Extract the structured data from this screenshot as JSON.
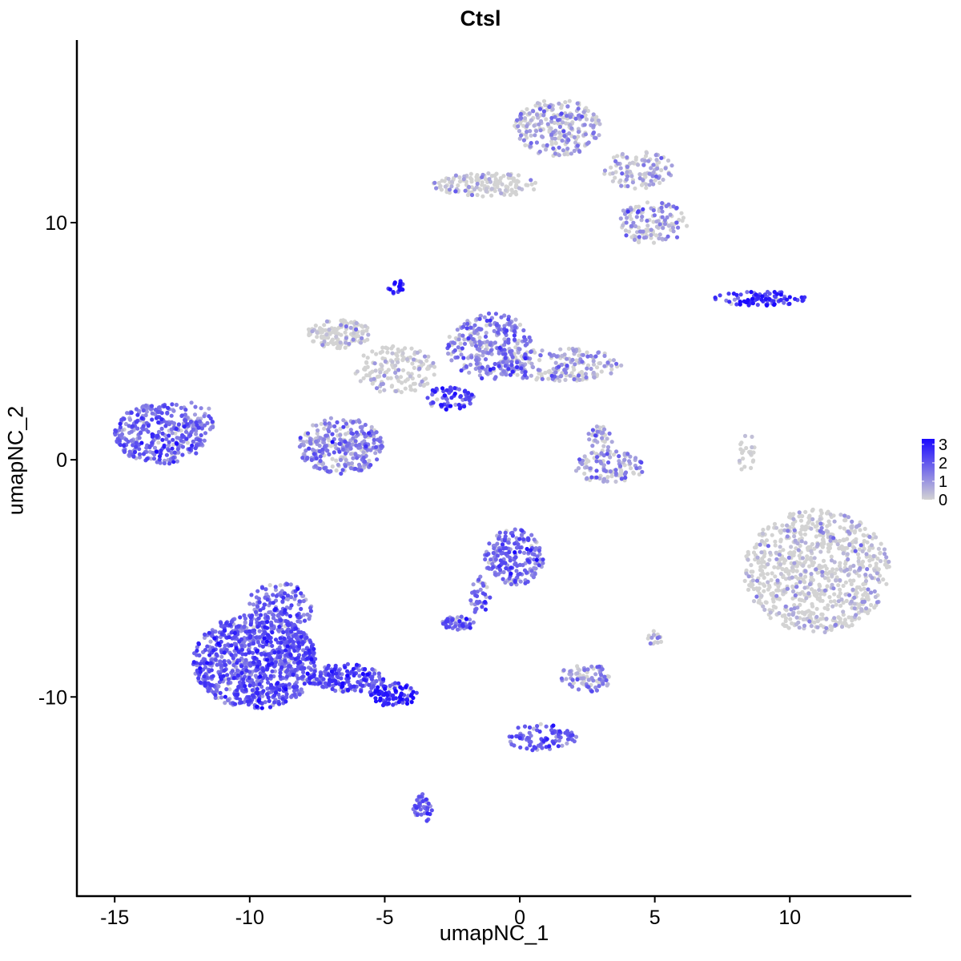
{
  "chart_data": {
    "type": "scatter",
    "title": "Ctsl",
    "xlabel": "umapNC_1",
    "ylabel": "umapNC_2",
    "xlim": [
      -16.4,
      14.5
    ],
    "ylim": [
      -18.4,
      17.7
    ],
    "x_ticks": [
      -15,
      -10,
      -5,
      0,
      5,
      10
    ],
    "x_tick_labels": [
      "-15",
      "-10",
      "-5",
      "0",
      "5",
      "10"
    ],
    "y_ticks": [
      -10,
      0,
      10
    ],
    "y_tick_labels": [
      "-10",
      "0",
      "10"
    ],
    "grid": false,
    "legend": {
      "position": "right",
      "type": "colorbar",
      "low_color": "#d3d3d3",
      "high_color": "#1a08ff",
      "range": [
        0,
        3.3
      ],
      "tick_values": [
        0,
        1,
        2,
        3
      ],
      "tick_labels": [
        "0",
        "1",
        "2",
        "3"
      ]
    },
    "clusters": [
      {
        "center": [
          -13.3,
          1.1
        ],
        "radius": [
          1.7,
          1.3
        ],
        "n": 340,
        "mean_expr": 1.6
      },
      {
        "center": [
          -11.9,
          1.7
        ],
        "radius": [
          0.6,
          0.8
        ],
        "n": 40,
        "mean_expr": 1.4
      },
      {
        "center": [
          -9.8,
          -8.5
        ],
        "radius": [
          2.3,
          2.0
        ],
        "n": 900,
        "mean_expr": 1.9
      },
      {
        "center": [
          -8.9,
          -6.2
        ],
        "radius": [
          1.3,
          1.0
        ],
        "n": 140,
        "mean_expr": 1.8
      },
      {
        "center": [
          -6.4,
          -9.2
        ],
        "radius": [
          1.4,
          0.6
        ],
        "n": 160,
        "mean_expr": 2.1
      },
      {
        "center": [
          -4.7,
          -9.9
        ],
        "radius": [
          0.9,
          0.5
        ],
        "n": 90,
        "mean_expr": 2.7
      },
      {
        "center": [
          -3.6,
          -14.7
        ],
        "radius": [
          0.35,
          0.6
        ],
        "n": 40,
        "mean_expr": 1.7
      },
      {
        "center": [
          -6.6,
          0.6
        ],
        "radius": [
          1.6,
          1.2
        ],
        "n": 300,
        "mean_expr": 1.2
      },
      {
        "center": [
          -6.7,
          5.3
        ],
        "radius": [
          1.2,
          0.6
        ],
        "n": 130,
        "mean_expr": 0.2
      },
      {
        "center": [
          -4.6,
          3.8
        ],
        "radius": [
          1.5,
          1.0
        ],
        "n": 150,
        "mean_expr": 0.3
      },
      {
        "center": [
          -1.1,
          4.8
        ],
        "radius": [
          1.6,
          1.4
        ],
        "n": 280,
        "mean_expr": 1.3
      },
      {
        "center": [
          1.5,
          4.0
        ],
        "radius": [
          2.3,
          0.7
        ],
        "n": 200,
        "mean_expr": 0.9
      },
      {
        "center": [
          -2.6,
          2.6
        ],
        "radius": [
          0.9,
          0.5
        ],
        "n": 70,
        "mean_expr": 2.2
      },
      {
        "center": [
          -4.6,
          7.3
        ],
        "radius": [
          0.3,
          0.3
        ],
        "n": 20,
        "mean_expr": 3.0
      },
      {
        "center": [
          1.4,
          14.0
        ],
        "radius": [
          1.6,
          1.2
        ],
        "n": 260,
        "mean_expr": 0.8
      },
      {
        "center": [
          -1.2,
          11.6
        ],
        "radius": [
          2.0,
          0.5
        ],
        "n": 140,
        "mean_expr": 0.4
      },
      {
        "center": [
          4.9,
          10.0
        ],
        "radius": [
          1.3,
          0.9
        ],
        "n": 130,
        "mean_expr": 0.9
      },
      {
        "center": [
          4.4,
          12.2
        ],
        "radius": [
          1.3,
          0.8
        ],
        "n": 110,
        "mean_expr": 0.7
      },
      {
        "center": [
          8.9,
          6.8
        ],
        "radius": [
          1.7,
          0.3
        ],
        "n": 90,
        "mean_expr": 2.5
      },
      {
        "center": [
          3.3,
          -0.3
        ],
        "radius": [
          1.3,
          0.7
        ],
        "n": 110,
        "mean_expr": 1.0
      },
      {
        "center": [
          3.0,
          0.8
        ],
        "radius": [
          0.5,
          0.7
        ],
        "n": 40,
        "mean_expr": 0.7
      },
      {
        "center": [
          -0.2,
          -4.1
        ],
        "radius": [
          1.1,
          1.2
        ],
        "n": 200,
        "mean_expr": 1.6
      },
      {
        "center": [
          -2.3,
          -6.9
        ],
        "radius": [
          0.6,
          0.3
        ],
        "n": 50,
        "mean_expr": 1.8
      },
      {
        "center": [
          -1.5,
          -5.7
        ],
        "radius": [
          0.4,
          0.8
        ],
        "n": 35,
        "mean_expr": 1.7
      },
      {
        "center": [
          2.4,
          -9.2
        ],
        "radius": [
          1.0,
          0.6
        ],
        "n": 80,
        "mean_expr": 1.0
      },
      {
        "center": [
          0.8,
          -11.7
        ],
        "radius": [
          1.3,
          0.6
        ],
        "n": 90,
        "mean_expr": 1.9
      },
      {
        "center": [
          11.0,
          -4.7
        ],
        "radius": [
          2.7,
          2.6
        ],
        "n": 800,
        "mean_expr": 0.35
      },
      {
        "center": [
          8.4,
          0.3
        ],
        "radius": [
          0.3,
          0.9
        ],
        "n": 25,
        "mean_expr": 0.3
      },
      {
        "center": [
          5.0,
          -7.5
        ],
        "radius": [
          0.3,
          0.3
        ],
        "n": 15,
        "mean_expr": 0.6
      }
    ]
  }
}
